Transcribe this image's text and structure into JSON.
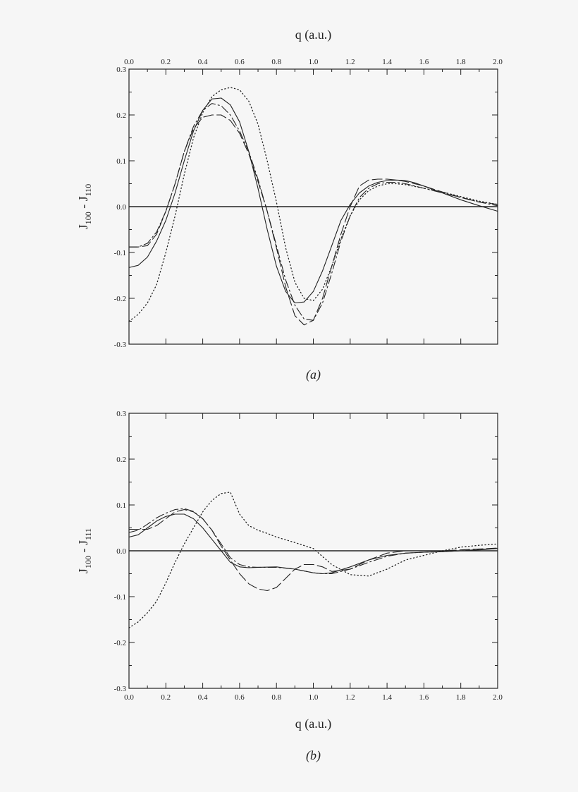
{
  "chart_data": [
    {
      "type": "line",
      "panel_label": "(a)",
      "xlabel": "q (a.u.)",
      "ylabel_main": "J",
      "ylabel_sub1": "100",
      "ylabel_sep": " - J",
      "ylabel_sub2": "110",
      "xlim": [
        0.0,
        2.0
      ],
      "ylim": [
        -0.3,
        0.3
      ],
      "x_tick_labels": [
        "0.0",
        "0.2",
        "0.4",
        "0.6",
        "0.8",
        "1.0",
        "1.2",
        "1.4",
        "1.6",
        "1.8",
        "2.0"
      ],
      "y_tick_labels": [
        "0.3",
        "0.2",
        "0.1",
        "0.0",
        "-0.1",
        "-0.2",
        "-0.3"
      ],
      "x_axis_position": "top",
      "zero_line": true,
      "grid": false,
      "series": [
        {
          "style": "solid",
          "x": [
            0.0,
            0.05,
            0.1,
            0.15,
            0.2,
            0.25,
            0.3,
            0.35,
            0.4,
            0.45,
            0.5,
            0.55,
            0.6,
            0.65,
            0.7,
            0.75,
            0.8,
            0.85,
            0.9,
            0.95,
            1.0,
            1.05,
            1.1,
            1.15,
            1.2,
            1.25,
            1.3,
            1.35,
            1.4,
            1.45,
            1.5,
            1.55,
            1.6,
            1.7,
            1.8,
            1.9,
            2.0
          ],
          "y": [
            -0.133,
            -0.128,
            -0.11,
            -0.075,
            -0.03,
            0.03,
            0.1,
            0.165,
            0.21,
            0.235,
            0.237,
            0.222,
            0.185,
            0.12,
            0.04,
            -0.05,
            -0.13,
            -0.185,
            -0.21,
            -0.208,
            -0.185,
            -0.14,
            -0.085,
            -0.03,
            0.005,
            0.03,
            0.045,
            0.053,
            0.057,
            0.058,
            0.057,
            0.052,
            0.045,
            0.03,
            0.015,
            0.002,
            -0.01
          ]
        },
        {
          "style": "dashed",
          "x": [
            0.0,
            0.05,
            0.1,
            0.15,
            0.2,
            0.25,
            0.3,
            0.35,
            0.4,
            0.45,
            0.5,
            0.55,
            0.6,
            0.65,
            0.7,
            0.75,
            0.8,
            0.85,
            0.9,
            0.95,
            1.0,
            1.05,
            1.1,
            1.15,
            1.2,
            1.25,
            1.3,
            1.35,
            1.4,
            1.45,
            1.5,
            1.6,
            1.7,
            1.8,
            1.9,
            2.0
          ],
          "y": [
            -0.088,
            -0.088,
            -0.085,
            -0.06,
            -0.01,
            0.05,
            0.12,
            0.17,
            0.195,
            0.2,
            0.2,
            0.188,
            0.16,
            0.115,
            0.055,
            -0.01,
            -0.09,
            -0.175,
            -0.238,
            -0.258,
            -0.248,
            -0.2,
            -0.13,
            -0.06,
            0.0,
            0.045,
            0.058,
            0.06,
            0.06,
            0.058,
            0.055,
            0.045,
            0.032,
            0.02,
            0.01,
            0.005
          ]
        },
        {
          "style": "dash-dot",
          "x": [
            0.0,
            0.05,
            0.1,
            0.15,
            0.2,
            0.25,
            0.3,
            0.35,
            0.4,
            0.45,
            0.5,
            0.55,
            0.6,
            0.65,
            0.7,
            0.75,
            0.8,
            0.85,
            0.9,
            0.95,
            1.0,
            1.05,
            1.1,
            1.15,
            1.2,
            1.25,
            1.3,
            1.35,
            1.4,
            1.45,
            1.5,
            1.6,
            1.7,
            1.8,
            1.9,
            2.0
          ],
          "y": [
            -0.088,
            -0.088,
            -0.08,
            -0.055,
            -0.01,
            0.05,
            0.12,
            0.175,
            0.21,
            0.225,
            0.22,
            0.2,
            0.165,
            0.12,
            0.06,
            -0.01,
            -0.085,
            -0.16,
            -0.215,
            -0.245,
            -0.248,
            -0.21,
            -0.145,
            -0.075,
            -0.02,
            0.02,
            0.04,
            0.05,
            0.053,
            0.053,
            0.05,
            0.04,
            0.03,
            0.02,
            0.01,
            0.002
          ]
        },
        {
          "style": "dotted",
          "x": [
            0.0,
            0.05,
            0.1,
            0.15,
            0.2,
            0.25,
            0.3,
            0.35,
            0.4,
            0.45,
            0.5,
            0.55,
            0.6,
            0.65,
            0.7,
            0.75,
            0.8,
            0.85,
            0.9,
            0.95,
            1.0,
            1.05,
            1.1,
            1.15,
            1.2,
            1.25,
            1.3,
            1.35,
            1.4,
            1.45,
            1.5,
            1.6,
            1.7,
            1.8,
            1.9,
            2.0
          ],
          "y": [
            -0.25,
            -0.235,
            -0.21,
            -0.17,
            -0.1,
            -0.02,
            0.07,
            0.15,
            0.205,
            0.24,
            0.255,
            0.26,
            0.255,
            0.23,
            0.18,
            0.1,
            0.01,
            -0.09,
            -0.165,
            -0.2,
            -0.205,
            -0.18,
            -0.13,
            -0.07,
            -0.02,
            0.015,
            0.035,
            0.045,
            0.05,
            0.05,
            0.048,
            0.04,
            0.032,
            0.022,
            0.012,
            0.005
          ]
        }
      ]
    },
    {
      "type": "line",
      "panel_label": "(b)",
      "xlabel": "q (a.u.)",
      "ylabel_main": "J",
      "ylabel_sub1": "100",
      "ylabel_sep": " - J",
      "ylabel_sub2": "111",
      "xlim": [
        0.0,
        2.0
      ],
      "ylim": [
        -0.3,
        0.3
      ],
      "x_tick_labels": [
        "0.0",
        "0.2",
        "0.4",
        "0.6",
        "0.8",
        "1.0",
        "1.2",
        "1.4",
        "1.6",
        "1.8",
        "2.0"
      ],
      "y_tick_labels": [
        "0.3",
        "0.2",
        "0.1",
        "0.0",
        "-0.1",
        "-0.2",
        "-0.3"
      ],
      "x_axis_position": "bottom",
      "zero_line": true,
      "grid": false,
      "series": [
        {
          "style": "solid",
          "x": [
            0.0,
            0.05,
            0.1,
            0.15,
            0.2,
            0.25,
            0.3,
            0.35,
            0.4,
            0.45,
            0.5,
            0.55,
            0.6,
            0.65,
            0.7,
            0.8,
            0.9,
            1.0,
            1.05,
            1.1,
            1.2,
            1.3,
            1.4,
            1.5,
            1.6,
            1.7,
            1.8,
            1.9,
            2.0
          ],
          "y": [
            0.03,
            0.035,
            0.05,
            0.065,
            0.075,
            0.08,
            0.08,
            0.07,
            0.05,
            0.025,
            0.0,
            -0.025,
            -0.035,
            -0.037,
            -0.036,
            -0.035,
            -0.04,
            -0.048,
            -0.05,
            -0.048,
            -0.035,
            -0.02,
            -0.01,
            -0.005,
            -0.003,
            -0.002,
            0.0,
            0.002,
            0.005
          ]
        },
        {
          "style": "dashed",
          "x": [
            0.0,
            0.05,
            0.1,
            0.15,
            0.2,
            0.25,
            0.3,
            0.35,
            0.4,
            0.45,
            0.5,
            0.55,
            0.6,
            0.65,
            0.7,
            0.75,
            0.8,
            0.85,
            0.9,
            0.95,
            1.0,
            1.05,
            1.1,
            1.2,
            1.3,
            1.4,
            1.5,
            1.6,
            1.7,
            1.8,
            1.9,
            2.0
          ],
          "y": [
            0.047,
            0.047,
            0.047,
            0.055,
            0.07,
            0.085,
            0.09,
            0.085,
            0.07,
            0.045,
            0.01,
            -0.02,
            -0.05,
            -0.072,
            -0.083,
            -0.087,
            -0.08,
            -0.06,
            -0.04,
            -0.03,
            -0.03,
            -0.035,
            -0.045,
            -0.04,
            -0.02,
            -0.005,
            0.0,
            0.0,
            0.0,
            0.002,
            0.004,
            0.006
          ]
        },
        {
          "style": "dash-dot",
          "x": [
            0.0,
            0.05,
            0.1,
            0.15,
            0.2,
            0.25,
            0.3,
            0.35,
            0.4,
            0.45,
            0.5,
            0.55,
            0.6,
            0.65,
            0.7,
            0.8,
            0.9,
            1.0,
            1.05,
            1.1,
            1.2,
            1.3,
            1.4,
            1.5,
            1.6,
            1.7,
            1.8,
            1.9,
            2.0
          ],
          "y": [
            0.04,
            0.045,
            0.058,
            0.072,
            0.082,
            0.09,
            0.092,
            0.086,
            0.07,
            0.045,
            0.015,
            -0.015,
            -0.03,
            -0.035,
            -0.036,
            -0.036,
            -0.04,
            -0.048,
            -0.05,
            -0.05,
            -0.04,
            -0.025,
            -0.012,
            -0.005,
            -0.003,
            -0.002,
            0.0,
            0.003,
            0.005
          ]
        },
        {
          "style": "dotted",
          "x": [
            0.0,
            0.05,
            0.1,
            0.15,
            0.2,
            0.25,
            0.3,
            0.35,
            0.4,
            0.45,
            0.5,
            0.55,
            0.6,
            0.65,
            0.7,
            0.75,
            0.8,
            0.9,
            1.0,
            1.1,
            1.2,
            1.3,
            1.4,
            1.5,
            1.6,
            1.7,
            1.8,
            1.9,
            2.0
          ],
          "y": [
            -0.168,
            -0.155,
            -0.135,
            -0.11,
            -0.07,
            -0.025,
            0.015,
            0.05,
            0.085,
            0.11,
            0.125,
            0.128,
            0.08,
            0.055,
            0.045,
            0.038,
            0.03,
            0.018,
            0.005,
            -0.03,
            -0.052,
            -0.055,
            -0.04,
            -0.02,
            -0.01,
            0.0,
            0.008,
            0.012,
            0.015
          ]
        }
      ]
    }
  ]
}
